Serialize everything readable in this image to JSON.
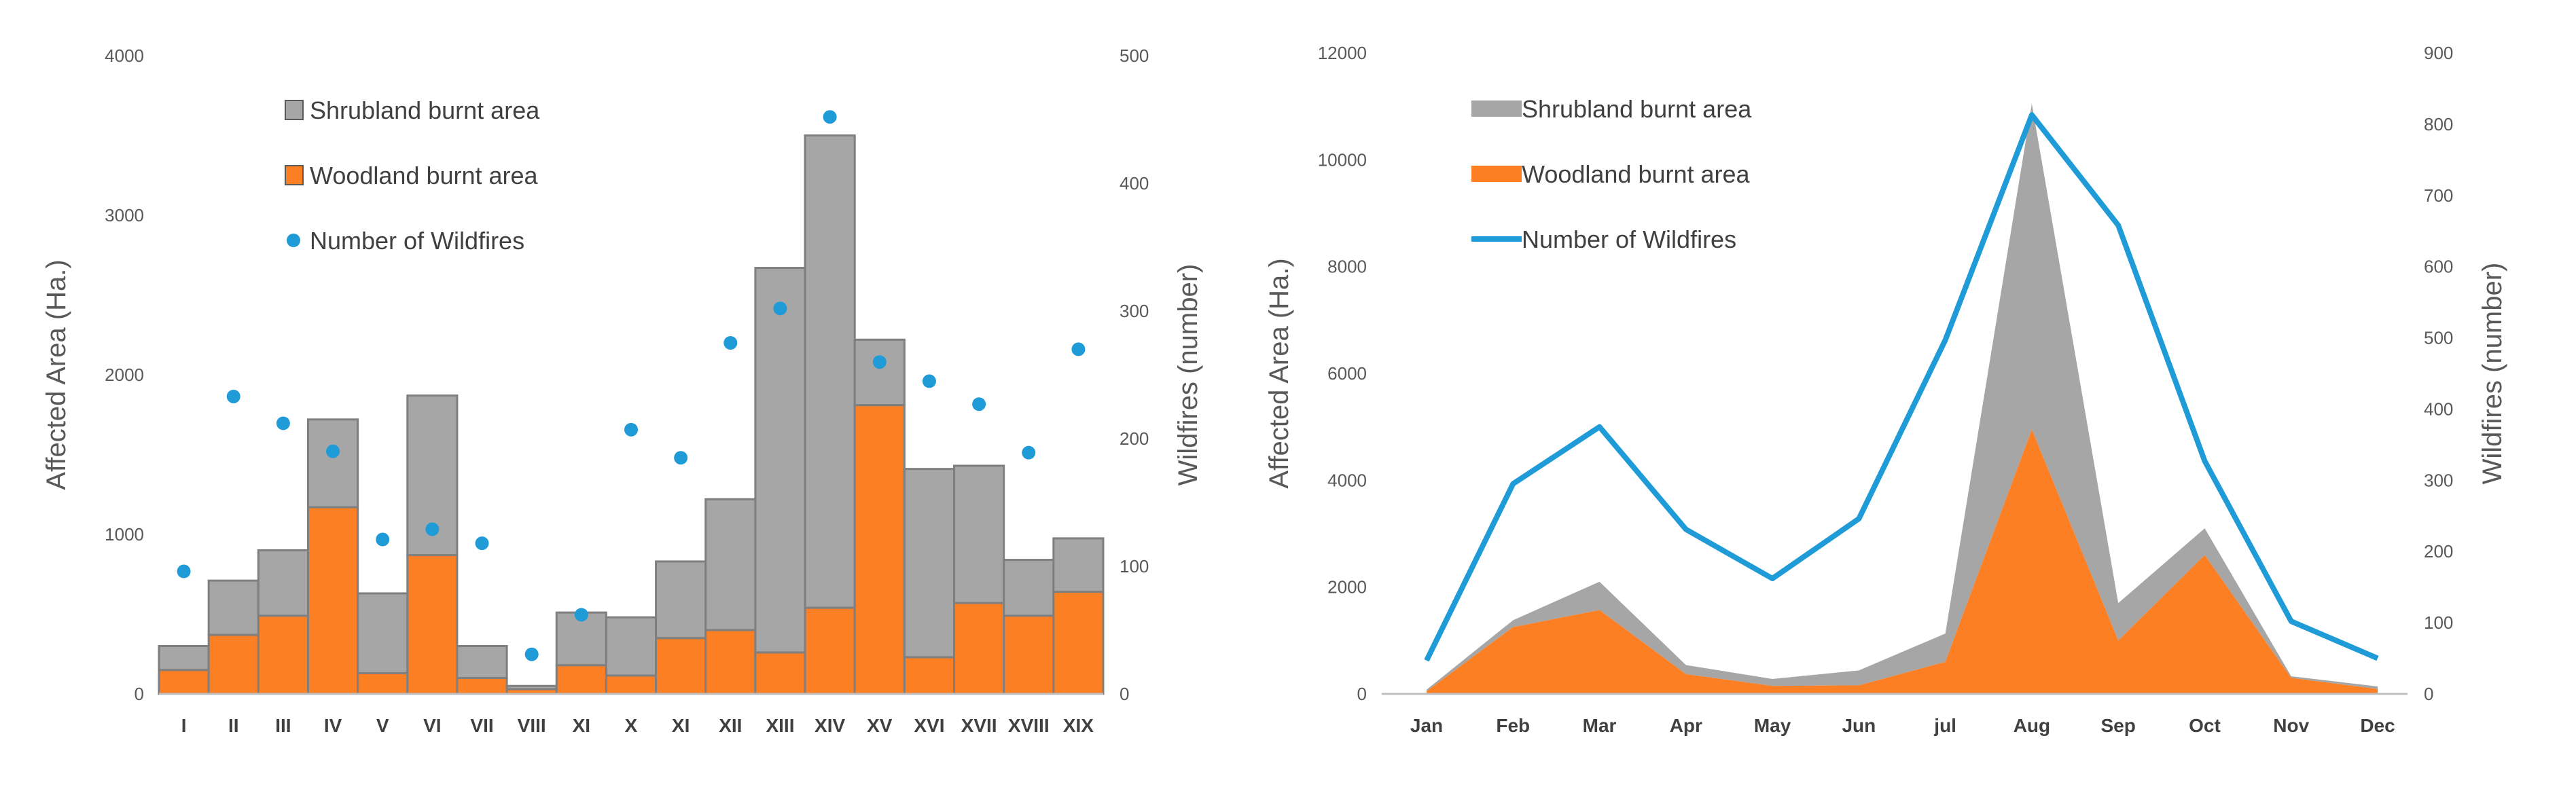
{
  "chart_data": [
    {
      "type": "bar",
      "stacked": true,
      "categories": [
        "I",
        "II",
        "III",
        "IV",
        "V",
        "VI",
        "VII",
        "VIII",
        "XI",
        "X",
        "XI",
        "XII",
        "XIII",
        "XIV",
        "XV",
        "XVI",
        "XVII",
        "XVIII",
        "XIX"
      ],
      "series": [
        {
          "name": "Woodland burnt area",
          "axis": "left",
          "color": "#fd7f23",
          "values": [
            150,
            370,
            490,
            1170,
            130,
            870,
            100,
            30,
            180,
            115,
            350,
            400,
            260,
            540,
            1810,
            230,
            570,
            490,
            640
          ]
        },
        {
          "name": "Shrubland burnt area",
          "axis": "left",
          "color": "#a6a6a6",
          "values": [
            150,
            340,
            410,
            550,
            500,
            1000,
            200,
            20,
            330,
            365,
            480,
            820,
            2410,
            2960,
            410,
            1180,
            860,
            350,
            335
          ]
        },
        {
          "name": "Number of Wildfires",
          "axis": "right",
          "kind": "points",
          "color": "#1f9bd7",
          "values": [
            96,
            233,
            212,
            190,
            121,
            129,
            118,
            31,
            62,
            207,
            185,
            275,
            302,
            452,
            260,
            245,
            227,
            189,
            270
          ]
        }
      ],
      "ylabel": "Affected Area (Ha.)",
      "y2label": "Wildfires (number)",
      "ylim": [
        0,
        4000
      ],
      "yticks": [
        0,
        1000,
        2000,
        3000,
        4000
      ],
      "y2lim": [
        0,
        500
      ],
      "y2ticks": [
        0,
        100,
        200,
        300,
        400,
        500
      ],
      "legend_position": "top-left",
      "legend": [
        "Shrubland burnt area",
        "Woodland burnt area",
        "Number of Wildfires"
      ]
    },
    {
      "type": "area",
      "stacked": true,
      "categories": [
        "Jan",
        "Feb",
        "Mar",
        "Apr",
        "May",
        "Jun",
        "jul",
        "Aug",
        "Sep",
        "Oct",
        "Nov",
        "Dec"
      ],
      "series": [
        {
          "name": "Woodland burnt area",
          "axis": "left",
          "color": "#fd7f23",
          "values": [
            50,
            1250,
            1570,
            370,
            150,
            160,
            600,
            4950,
            1000,
            2600,
            300,
            90
          ]
        },
        {
          "name": "Shrubland burnt area",
          "axis": "left",
          "color": "#a6a6a6",
          "values": [
            30,
            130,
            530,
            170,
            130,
            280,
            530,
            6100,
            700,
            500,
            30,
            50
          ]
        },
        {
          "name": "Number of Wildfires",
          "axis": "right",
          "kind": "line",
          "color": "#1f9bd7",
          "values": [
            47,
            295,
            375,
            231,
            162,
            246,
            497,
            813,
            658,
            327,
            102,
            50
          ]
        }
      ],
      "ylabel": "Affected Area (Ha.)",
      "y2label": "Wildfires (number)",
      "ylim": [
        0,
        12000
      ],
      "yticks": [
        0,
        2000,
        4000,
        6000,
        8000,
        10000,
        12000
      ],
      "y2lim": [
        0,
        900
      ],
      "y2ticks": [
        0,
        100,
        200,
        300,
        400,
        500,
        600,
        700,
        800,
        900
      ],
      "legend_position": "top-left",
      "legend": [
        "Shrubland burnt area",
        "Woodland burnt area",
        "Number of Wildfires"
      ]
    }
  ]
}
